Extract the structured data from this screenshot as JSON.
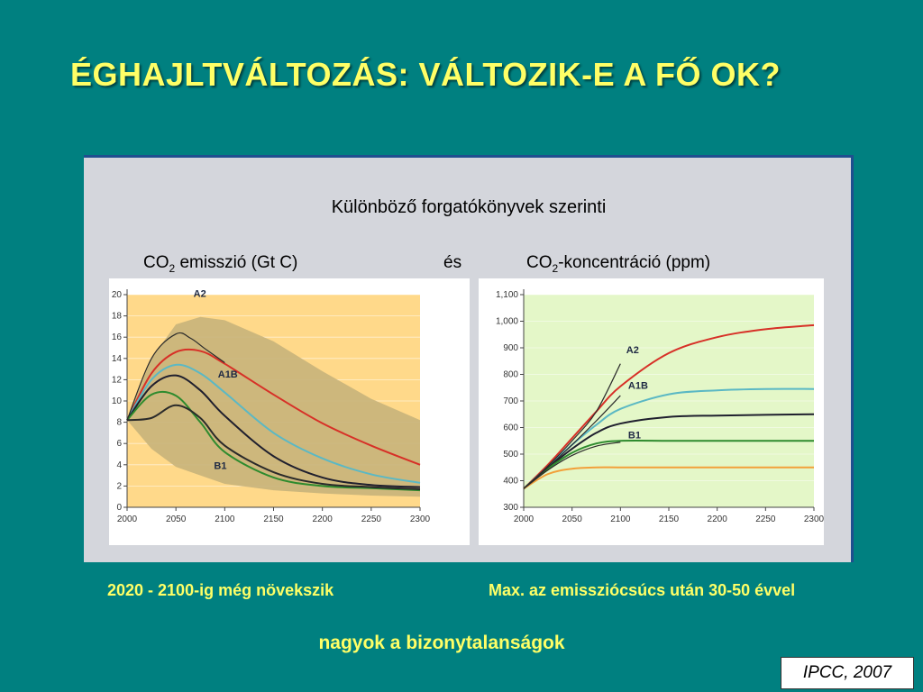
{
  "slide": {
    "title": "ÉGHAJLTVÁLTOZÁS: VÁLTOZIK-E A FŐ OK?",
    "panel_heading": "Különböző forgatókönyvek szerinti",
    "left_label_pre": "CO",
    "left_label_sub": "2",
    "left_label_post": " emisszió (Gt C)",
    "middle_label": "és",
    "right_label_pre": "CO",
    "right_label_sub": "2",
    "right_label_post": "-koncentráció (ppm)",
    "caption_left": "2020 - 2100-ig még növekszik",
    "caption_right": "Max. az emissziócsúcs után 30-50 évvel",
    "footer_note": "nagyok a bizonytalanságok",
    "source": "IPCC, 2007"
  },
  "chart_data": [
    {
      "type": "line",
      "x": [
        2000,
        2025,
        2050,
        2075,
        2100,
        2150,
        2200,
        2250,
        2300
      ],
      "xticks": [
        2000,
        2050,
        2100,
        2150,
        2200,
        2250,
        2300
      ],
      "yticks": [
        0,
        2,
        4,
        6,
        8,
        10,
        12,
        14,
        16,
        18,
        20
      ],
      "xlim": [
        2000,
        2300
      ],
      "ylim": [
        0,
        20
      ],
      "uncertainty_band": {
        "color": "#c8b27a",
        "upper": [
          8.2,
          14,
          17.2,
          17.9,
          17.6,
          15.6,
          12.8,
          10.2,
          8.2
        ],
        "lower": [
          8.2,
          5.5,
          3.8,
          3.0,
          2.2,
          1.6,
          1.3,
          1.1,
          1.0
        ]
      },
      "series": [
        {
          "color": "#d73027",
          "values": [
            8.2,
            12.6,
            14.6,
            14.7,
            13.5,
            10.6,
            7.9,
            5.8,
            4.0
          ]
        },
        {
          "color": "#5bb8c4",
          "values": [
            8.2,
            12.0,
            13.4,
            12.6,
            10.8,
            7.0,
            4.6,
            3.1,
            2.3
          ]
        },
        {
          "color": "#1f1f2e",
          "values": [
            8.2,
            11.4,
            12.4,
            11.0,
            8.6,
            4.8,
            2.8,
            2.1,
            1.9
          ]
        },
        {
          "color": "#2e8b2e",
          "values": [
            8.2,
            10.6,
            10.5,
            8.0,
            5.2,
            2.8,
            2.0,
            1.8,
            1.6
          ]
        },
        {
          "color": "#2a2a2a",
          "values": [
            8.2,
            8.4,
            9.6,
            8.4,
            5.8,
            3.3,
            2.2,
            1.9,
            1.7
          ]
        },
        {
          "color": "#2a2a2a",
          "x": [
            2000,
            2025,
            2050,
            2065,
            2080,
            2100
          ],
          "values": [
            8.2,
            14.0,
            16.3,
            15.9,
            14.9,
            13.6
          ]
        }
      ],
      "annotations": [
        {
          "text": "A2",
          "x": 2068,
          "y": 19.8
        },
        {
          "text": "A1B",
          "x": 2093,
          "y": 12.2
        },
        {
          "text": "B1",
          "x": 2089,
          "y": 3.6
        }
      ]
    },
    {
      "type": "line",
      "x": [
        2000,
        2025,
        2050,
        2075,
        2100,
        2150,
        2200,
        2250,
        2300
      ],
      "xticks": [
        2000,
        2050,
        2100,
        2150,
        2200,
        2250,
        2300
      ],
      "ytick_labels": [
        "300",
        "400",
        "500",
        "600",
        "700",
        "800",
        "900",
        "1,000",
        "1,100"
      ],
      "yticks": [
        300,
        400,
        500,
        600,
        700,
        800,
        900,
        1000,
        1100
      ],
      "xlim": [
        2000,
        2300
      ],
      "ylim": [
        300,
        1100
      ],
      "series": [
        {
          "color": "#d73027",
          "values": [
            370,
            460,
            560,
            660,
            755,
            880,
            940,
            970,
            985
          ]
        },
        {
          "color": "#5bb8c4",
          "values": [
            370,
            452,
            535,
            610,
            670,
            725,
            740,
            745,
            745
          ]
        },
        {
          "color": "#1f1f2e",
          "values": [
            370,
            448,
            520,
            580,
            615,
            640,
            645,
            648,
            650
          ]
        },
        {
          "color": "#2e8b2e",
          "values": [
            370,
            445,
            505,
            540,
            550,
            550,
            550,
            550,
            550
          ]
        },
        {
          "color": "#f2a03a",
          "values": [
            370,
            425,
            445,
            450,
            450,
            450,
            450,
            450,
            450
          ]
        },
        {
          "color": "#2a2a2a",
          "x": [
            2000,
            2025,
            2050,
            2075,
            2100
          ],
          "values": [
            370,
            455,
            550,
            660,
            840
          ]
        },
        {
          "color": "#2a2a2a",
          "x": [
            2000,
            2025,
            2050,
            2075,
            2100
          ],
          "values": [
            370,
            450,
            535,
            625,
            720
          ]
        },
        {
          "color": "#2a2a2a",
          "x": [
            2000,
            2025,
            2050,
            2075,
            2100
          ],
          "values": [
            370,
            440,
            495,
            530,
            545
          ]
        }
      ],
      "annotations": [
        {
          "text": "A2",
          "x": 2106,
          "y": 880
        },
        {
          "text": "A1B",
          "x": 2108,
          "y": 745
        },
        {
          "text": "B1",
          "x": 2108,
          "y": 560
        }
      ]
    }
  ]
}
